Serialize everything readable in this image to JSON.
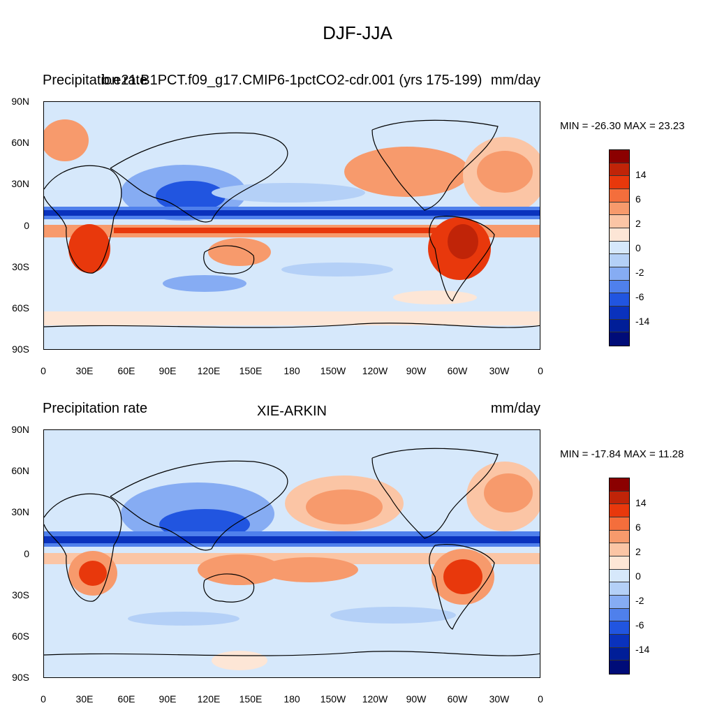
{
  "figure": {
    "title": "DJF-JJA"
  },
  "panels": [
    {
      "left_label": "Precipitation rate",
      "center_label": "b.e21.B1PCT.f09_g17.CMIP6-1pctCO2-cdr.001 (yrs 175-199)",
      "right_label": "mm/day",
      "minmax": "MIN = -26.30 MAX =  23.23"
    },
    {
      "left_label": "Precipitation rate",
      "center_label": "XIE-ARKIN",
      "right_label": "mm/day",
      "minmax": "MIN = -17.84 MAX =  11.28"
    }
  ],
  "axes": {
    "lat_labels": [
      "90N",
      "60N",
      "30N",
      "0",
      "30S",
      "60S",
      "90S"
    ],
    "lon_labels": [
      "0",
      "30E",
      "60E",
      "90E",
      "120E",
      "150E",
      "180",
      "150W",
      "120W",
      "90W",
      "60W",
      "30W",
      "0"
    ]
  },
  "colorbar": {
    "labels": [
      "14",
      "6",
      "2",
      "0",
      "-2",
      "-6",
      "-14"
    ],
    "colors": [
      "#8b0000",
      "#c02408",
      "#e8380c",
      "#f46e3c",
      "#f79a6c",
      "#fbc5a5",
      "#fde6d6",
      "#d6e8fb",
      "#b4d0f7",
      "#86acf3",
      "#4f80ec",
      "#2155e0",
      "#0a32bd",
      "#001e98",
      "#000c78"
    ]
  }
}
